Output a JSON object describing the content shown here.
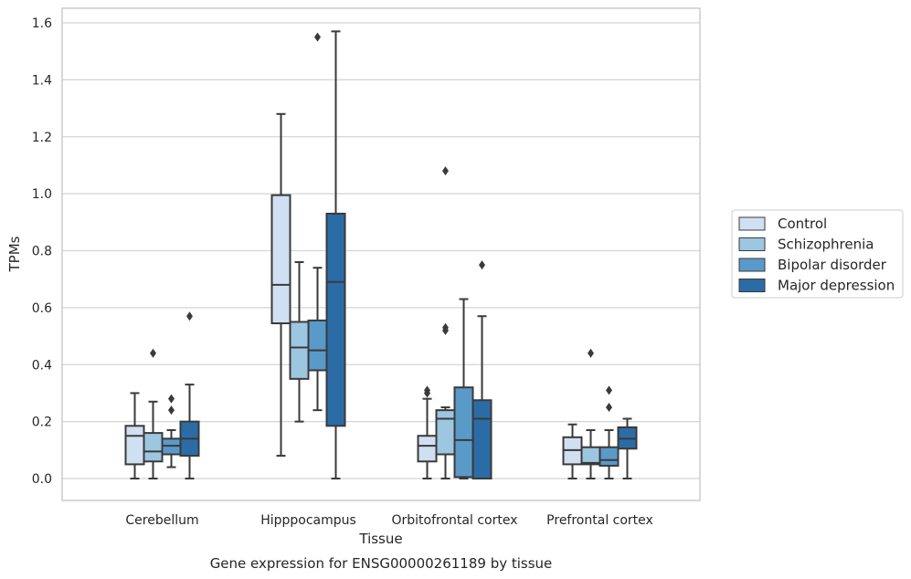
{
  "chart_data": {
    "type": "box",
    "title": "",
    "caption": "Gene expression for ENSG00000261189 by tissue",
    "xlabel": "Tissue",
    "ylabel": "TPMs",
    "ylim": [
      -0.075,
      1.65
    ],
    "yticks": [
      "0.0",
      "0.2",
      "0.4",
      "0.6",
      "0.8",
      "1.0",
      "1.2",
      "1.4",
      "1.6"
    ],
    "ytick_values": [
      0,
      0.2,
      0.4,
      0.6,
      0.8,
      1.0,
      1.2,
      1.4,
      1.6
    ],
    "grid": true,
    "legend_position": "right",
    "categories": [
      "Cerebellum",
      "Hipppocampus",
      "Orbitofrontal cortex",
      "Prefrontal cortex"
    ],
    "series": [
      {
        "name": "Control",
        "color": "#d0e0f2",
        "boxes": [
          {
            "whislo": 0.0,
            "q1": 0.05,
            "med": 0.15,
            "q3": 0.185,
            "whishi": 0.3,
            "fliers": []
          },
          {
            "whislo": 0.08,
            "q1": 0.545,
            "med": 0.68,
            "q3": 0.995,
            "whishi": 1.28,
            "fliers": []
          },
          {
            "whislo": 0.0,
            "q1": 0.06,
            "med": 0.115,
            "q3": 0.15,
            "whishi": 0.28,
            "fliers": [
              0.3,
              0.31
            ]
          },
          {
            "whislo": 0.0,
            "q1": 0.05,
            "med": 0.1,
            "q3": 0.145,
            "whishi": 0.19,
            "fliers": []
          }
        ]
      },
      {
        "name": "Schizophrenia",
        "color": "#9dc6e0",
        "boxes": [
          {
            "whislo": 0.0,
            "q1": 0.06,
            "med": 0.095,
            "q3": 0.16,
            "whishi": 0.27,
            "fliers": [
              0.44
            ]
          },
          {
            "whislo": 0.2,
            "q1": 0.35,
            "med": 0.46,
            "q3": 0.55,
            "whishi": 0.76,
            "fliers": []
          },
          {
            "whislo": 0.0,
            "q1": 0.085,
            "med": 0.21,
            "q3": 0.24,
            "whishi": 0.25,
            "fliers": [
              0.52,
              0.53,
              1.08
            ]
          },
          {
            "whislo": 0.0,
            "q1": 0.05,
            "med": 0.055,
            "q3": 0.11,
            "whishi": 0.17,
            "fliers": [
              0.44
            ]
          }
        ]
      },
      {
        "name": "Bipolar disorder",
        "color": "#5a9ac8",
        "boxes": [
          {
            "whislo": 0.04,
            "q1": 0.085,
            "med": 0.115,
            "q3": 0.14,
            "whishi": 0.17,
            "fliers": [
              0.24,
              0.28
            ]
          },
          {
            "whislo": 0.24,
            "q1": 0.38,
            "med": 0.45,
            "q3": 0.555,
            "whishi": 0.74,
            "fliers": [
              1.55
            ]
          },
          {
            "whislo": 0.0,
            "q1": 0.005,
            "med": 0.135,
            "q3": 0.32,
            "whishi": 0.63,
            "fliers": []
          },
          {
            "whislo": 0.0,
            "q1": 0.045,
            "med": 0.065,
            "q3": 0.11,
            "whishi": 0.17,
            "fliers": [
              0.25,
              0.31
            ]
          }
        ]
      },
      {
        "name": "Major depression",
        "color": "#2b6ca7",
        "boxes": [
          {
            "whislo": 0.0,
            "q1": 0.08,
            "med": 0.14,
            "q3": 0.2,
            "whishi": 0.33,
            "fliers": [
              0.57
            ]
          },
          {
            "whislo": 0.0,
            "q1": 0.185,
            "med": 0.69,
            "q3": 0.93,
            "whishi": 1.57,
            "fliers": []
          },
          {
            "whislo": 0.0,
            "q1": 0.0,
            "med": 0.21,
            "q3": 0.275,
            "whishi": 0.57,
            "fliers": [
              0.75
            ]
          },
          {
            "whislo": 0.0,
            "q1": 0.105,
            "med": 0.14,
            "q3": 0.18,
            "whishi": 0.21,
            "fliers": []
          }
        ]
      }
    ]
  }
}
